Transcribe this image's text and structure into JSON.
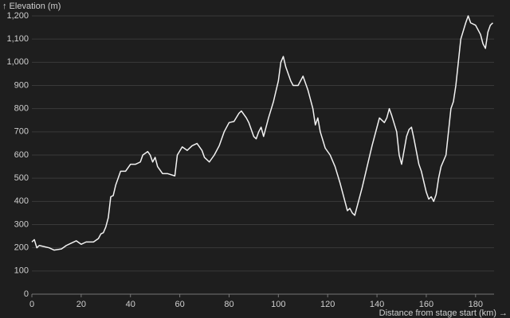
{
  "chart_data": {
    "type": "line",
    "y_label": "↑ Elevation (m)",
    "x_label": "Distance from stage start (km) →",
    "x": [
      0,
      1,
      2,
      3,
      5,
      7,
      9,
      12,
      14,
      16,
      18,
      20,
      22,
      25,
      27,
      28,
      29,
      30,
      31,
      32,
      33,
      34,
      35,
      36,
      38,
      40,
      42,
      44,
      45,
      47,
      48,
      49,
      50,
      51,
      53,
      55,
      58,
      59,
      61,
      63,
      65,
      67,
      69,
      70,
      72,
      74,
      76,
      78,
      80,
      82,
      84,
      85,
      87,
      88,
      90,
      91,
      92,
      93,
      94,
      96,
      98,
      100,
      101,
      102,
      103,
      105,
      106,
      108,
      110,
      112,
      114,
      115,
      116,
      117,
      119,
      121,
      123,
      125,
      127,
      128,
      129,
      130,
      131,
      132,
      134,
      136,
      138,
      140,
      141,
      143,
      144,
      145,
      146,
      148,
      149,
      150,
      152,
      153,
      154,
      155,
      157,
      158,
      160,
      161,
      162,
      163,
      164,
      165,
      166,
      168,
      170,
      171,
      172,
      174,
      176,
      177,
      178,
      180,
      182,
      183,
      184,
      185,
      186,
      187
    ],
    "series": [
      {
        "color": "#f2f2f2",
        "values": [
          225,
          235,
          200,
          210,
          205,
          200,
          190,
          195,
          210,
          220,
          230,
          215,
          225,
          225,
          240,
          260,
          265,
          290,
          330,
          420,
          425,
          470,
          500,
          530,
          530,
          560,
          560,
          570,
          600,
          615,
          600,
          570,
          590,
          550,
          520,
          520,
          510,
          600,
          635,
          620,
          640,
          650,
          620,
          590,
          570,
          600,
          640,
          700,
          740,
          745,
          780,
          790,
          760,
          740,
          680,
          670,
          700,
          720,
          680,
          760,
          830,
          920,
          1000,
          1025,
          980,
          920,
          900,
          900,
          940,
          880,
          800,
          730,
          760,
          700,
          630,
          600,
          550,
          480,
          400,
          360,
          370,
          350,
          340,
          380,
          460,
          550,
          640,
          720,
          760,
          740,
          760,
          800,
          770,
          700,
          600,
          560,
          680,
          710,
          720,
          670,
          560,
          530,
          440,
          410,
          420,
          400,
          430,
          500,
          550,
          600,
          800,
          830,
          900,
          1100,
          1170,
          1200,
          1170,
          1160,
          1120,
          1080,
          1060,
          1130,
          1160,
          1170
        ]
      }
    ],
    "xlim": [
      0,
      187.5
    ],
    "ylim": [
      0,
      1200
    ],
    "xticks": [
      0,
      20,
      40,
      60,
      80,
      100,
      120,
      140,
      160,
      180
    ],
    "yticks": [
      0,
      100,
      200,
      300,
      400,
      500,
      600,
      700,
      800,
      900,
      {
        "value": 1000,
        "label": "1,000"
      },
      {
        "value": 1100,
        "label": "1,100"
      },
      {
        "value": 1200,
        "label": "1,200"
      }
    ],
    "grid": true
  }
}
